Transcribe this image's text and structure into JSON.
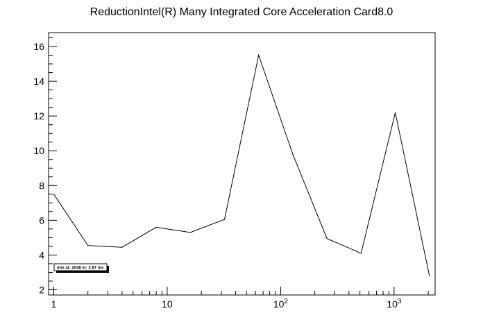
{
  "chart_data": {
    "type": "line",
    "title": "ReductionIntel(R) Many Integrated Core Acceleration Card8.0",
    "xlabel": "",
    "ylabel": "",
    "x_scale": "log",
    "xlim": [
      0.9,
      2300
    ],
    "ylim": [
      1.7,
      16.8
    ],
    "grid": false,
    "x": [
      1,
      2,
      4,
      8,
      16,
      32,
      64,
      128,
      256,
      512,
      1024,
      2048
    ],
    "values": [
      7.5,
      4.55,
      4.45,
      5.6,
      5.3,
      6.05,
      15.5,
      9.8,
      4.95,
      4.1,
      12.2,
      2.8
    ],
    "y_ticks": [
      {
        "value": 2,
        "label": "2"
      },
      {
        "value": 4,
        "label": "4"
      },
      {
        "value": 6,
        "label": "6"
      },
      {
        "value": 8,
        "label": "8"
      },
      {
        "value": 10,
        "label": "10"
      },
      {
        "value": 12,
        "label": "12"
      },
      {
        "value": 14,
        "label": "14"
      },
      {
        "value": 16,
        "label": "16"
      }
    ],
    "x_ticks": [
      {
        "value": 1,
        "label": "1",
        "sup": ""
      },
      {
        "value": 10,
        "label": "10",
        "sup": ""
      },
      {
        "value": 100,
        "label": "10",
        "sup": "2"
      },
      {
        "value": 1000,
        "label": "10",
        "sup": "3"
      }
    ],
    "annotation": "min at: 2048 in: 2.87 ms"
  }
}
